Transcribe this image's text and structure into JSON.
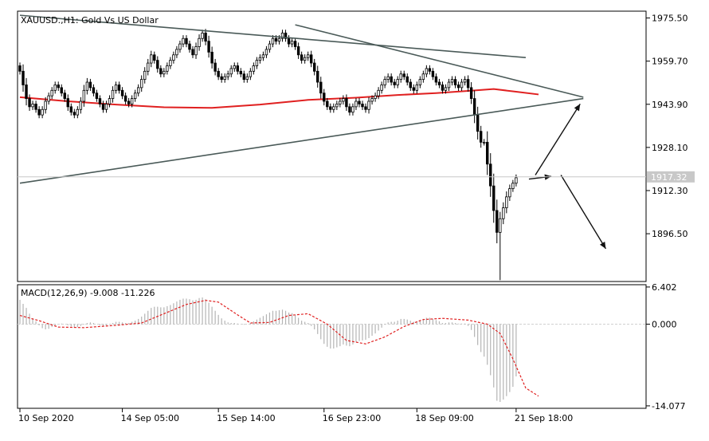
{
  "chart_data": [
    {
      "type": "candlestick",
      "panel": "main",
      "title": "XAUUSD.,H1:  Gold Vs US Dollar",
      "y_ticks": [
        "1975.50",
        "1959.70",
        "1943.90",
        "1928.10",
        "1912.30",
        "1896.50"
      ],
      "y_tick_values": [
        1975.5,
        1959.7,
        1943.9,
        1928.1,
        1912.3,
        1896.5
      ],
      "ylim": [
        1879.0,
        1978.0
      ],
      "current_price": "1917.32",
      "current_price_value": 1917.32,
      "x_labels": [
        "10 Sep 2020",
        "14 Sep 05:00",
        "15 Sep 14:00",
        "16 Sep 23:00",
        "18 Sep 09:00",
        "21 Sep 18:00"
      ],
      "x_label_bars": [
        0,
        32,
        62,
        95,
        124,
        155
      ],
      "bar_count": 162,
      "closes": [
        1956,
        1951,
        1946,
        1943,
        1944,
        1942,
        1940,
        1942,
        1945,
        1947,
        1949,
        1951,
        1950,
        1948,
        1946,
        1943,
        1941,
        1940,
        1942,
        1945,
        1949,
        1952,
        1950,
        1948,
        1946,
        1944,
        1942,
        1944,
        1946,
        1949,
        1951,
        1949,
        1947,
        1945,
        1944,
        1946,
        1948,
        1950,
        1953,
        1956,
        1959,
        1962,
        1960,
        1957,
        1955,
        1956,
        1958,
        1960,
        1962,
        1964,
        1966,
        1968,
        1966,
        1964,
        1962,
        1965,
        1968,
        1970,
        1967,
        1963,
        1959,
        1956,
        1954,
        1953,
        1954,
        1955,
        1957,
        1958,
        1956,
        1955,
        1953,
        1954,
        1956,
        1958,
        1960,
        1961,
        1962,
        1964,
        1966,
        1968,
        1967,
        1968,
        1970,
        1968,
        1966,
        1967,
        1965,
        1962,
        1960,
        1961,
        1962,
        1959,
        1956,
        1952,
        1948,
        1945,
        1943,
        1942,
        1943,
        1944,
        1945,
        1946,
        1943,
        1941,
        1943,
        1945,
        1944,
        1943,
        1942,
        1945,
        1946,
        1947,
        1949,
        1951,
        1953,
        1954,
        1952,
        1951,
        1953,
        1955,
        1954,
        1952,
        1950,
        1949,
        1951,
        1953,
        1955,
        1957,
        1956,
        1954,
        1952,
        1951,
        1949,
        1950,
        1952,
        1953,
        1951,
        1950,
        1952,
        1953,
        1950,
        1946,
        1940,
        1934,
        1930,
        1930,
        1922,
        1914,
        1905,
        1897,
        1902,
        1906,
        1910,
        1913,
        1915,
        1917
      ],
      "ma_points": [
        [
          0,
          1946.5
        ],
        [
          15,
          1945.0
        ],
        [
          30,
          1943.8
        ],
        [
          45,
          1942.8
        ],
        [
          60,
          1942.6
        ],
        [
          75,
          1943.8
        ],
        [
          90,
          1945.5
        ],
        [
          105,
          1946.3
        ],
        [
          118,
          1947.3
        ],
        [
          130,
          1948.0
        ],
        [
          140,
          1948.8
        ],
        [
          148,
          1949.5
        ],
        [
          155,
          1948.5
        ],
        [
          162,
          1947.5
        ]
      ],
      "trendlines": [
        {
          "from": [
            0,
            1976.5
          ],
          "to": [
            158,
            1961.0
          ]
        },
        {
          "from": [
            86,
            1973.0
          ],
          "to": [
            176,
            1946.5
          ]
        },
        {
          "from": [
            0,
            1915.0
          ],
          "to": [
            176,
            1946.0
          ]
        }
      ],
      "arrows": [
        {
          "from": [
            161,
            1918.0
          ],
          "to": [
            175,
            1944.0
          ]
        },
        {
          "from": [
            159,
            1916.5
          ],
          "to": [
            166,
            1917.5
          ]
        },
        {
          "from": [
            169,
            1918.0
          ],
          "to": [
            183,
            1891.0
          ]
        }
      ],
      "colors": {
        "up_down": "#000000",
        "ma": "#e02020",
        "trend": "#4a5a58",
        "arrow": "#111111",
        "grid": "#c8c8c8"
      }
    },
    {
      "type": "histogram-line",
      "panel": "indicator",
      "title": "MACD(12,26,9) -9.008 -11.226",
      "y_ticks": [
        "6.402",
        "0.000",
        "-14.077"
      ],
      "y_tick_values": [
        6.402,
        0.0,
        -14.077
      ],
      "ylim": [
        -14.5,
        6.8
      ],
      "histogram": [
        4.2,
        3.5,
        2.8,
        1.8,
        1.0,
        0.5,
        -0.2,
        -0.7,
        -0.9,
        -0.8,
        -0.5,
        -0.2,
        0.0,
        0.1,
        0.0,
        -0.2,
        -0.4,
        -0.6,
        -0.5,
        -0.3,
        -0.1,
        0.2,
        0.3,
        0.2,
        0.0,
        -0.2,
        -0.3,
        -0.2,
        0.0,
        0.2,
        0.4,
        0.4,
        0.3,
        0.2,
        0.2,
        0.4,
        0.6,
        0.9,
        1.3,
        1.8,
        2.3,
        2.8,
        3.0,
        3.0,
        2.9,
        2.9,
        3.1,
        3.3,
        3.6,
        3.9,
        4.2,
        4.4,
        4.4,
        4.3,
        4.1,
        4.2,
        4.5,
        4.6,
        4.3,
        3.7,
        3.0,
        2.3,
        1.6,
        1.0,
        0.6,
        0.3,
        0.2,
        0.2,
        0.1,
        0.0,
        -0.1,
        0.0,
        0.2,
        0.5,
        0.8,
        1.1,
        1.4,
        1.7,
        2.0,
        2.3,
        2.3,
        2.4,
        2.5,
        2.3,
        2.0,
        1.9,
        1.6,
        1.1,
        0.6,
        0.4,
        0.2,
        -0.3,
        -0.9,
        -1.7,
        -2.6,
        -3.4,
        -3.9,
        -4.2,
        -4.2,
        -4.0,
        -3.8,
        -3.5,
        -3.7,
        -3.8,
        -3.5,
        -3.1,
        -2.9,
        -2.8,
        -2.7,
        -2.4,
        -2.0,
        -1.6,
        -1.1,
        -0.6,
        -0.1,
        0.3,
        0.4,
        0.4,
        0.6,
        0.9,
        0.9,
        0.8,
        0.6,
        0.4,
        0.5,
        0.7,
        0.9,
        1.1,
        1.1,
        0.9,
        0.7,
        0.5,
        0.2,
        0.2,
        0.3,
        0.3,
        0.2,
        0.1,
        0.1,
        0.1,
        -0.3,
        -1.0,
        -2.2,
        -3.6,
        -4.8,
        -5.6,
        -7.0,
        -8.8,
        -10.9,
        -13.2,
        -13.4,
        -13.0,
        -12.4,
        -11.7,
        -10.8,
        -9.0
      ],
      "signal_points": [
        [
          0,
          1.5
        ],
        [
          6,
          0.6
        ],
        [
          12,
          -0.5
        ],
        [
          20,
          -0.6
        ],
        [
          30,
          -0.2
        ],
        [
          38,
          0.2
        ],
        [
          45,
          1.8
        ],
        [
          52,
          3.4
        ],
        [
          58,
          4.1
        ],
        [
          62,
          3.8
        ],
        [
          68,
          1.6
        ],
        [
          72,
          0.2
        ],
        [
          78,
          0.3
        ],
        [
          84,
          1.5
        ],
        [
          90,
          1.8
        ],
        [
          96,
          0.0
        ],
        [
          102,
          -2.8
        ],
        [
          108,
          -3.4
        ],
        [
          114,
          -2.2
        ],
        [
          120,
          -0.4
        ],
        [
          126,
          0.8
        ],
        [
          132,
          1.0
        ],
        [
          140,
          0.7
        ],
        [
          146,
          0.0
        ],
        [
          150,
          -1.6
        ],
        [
          154,
          -6.0
        ],
        [
          158,
          -11.0
        ],
        [
          162,
          -12.4
        ]
      ],
      "colors": {
        "histogram": "#b4b4b4",
        "signal": "#e02020",
        "zero": "#d0d0d0"
      }
    }
  ]
}
